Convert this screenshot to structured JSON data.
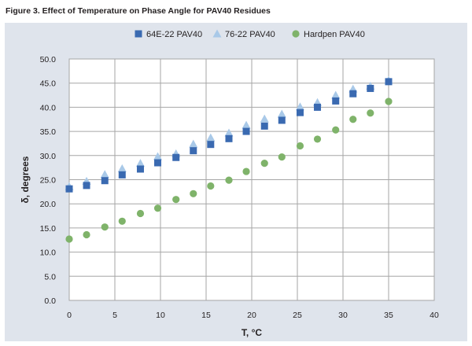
{
  "figure": {
    "title": "Figure 3.  Effect of Temperature on Phase Angle for PAV40 Residues"
  },
  "colors": {
    "panel_background": "#dfe4ec",
    "plot_background": "#ffffff",
    "grid": "#a6a6a6",
    "series_64E22": "#3a6ab1",
    "series_7622": "#a9c9e8",
    "series_hardpen": "#7fb36a"
  },
  "chart_data": {
    "type": "scatter",
    "title": "Effect of Temperature on Phase Angle for PAV40 Residues",
    "xlabel": "T, °C",
    "ylabel": "δ, degrees",
    "xlim": [
      0,
      40
    ],
    "ylim": [
      0,
      50
    ],
    "x_ticks": [
      "0",
      "5",
      "10",
      "15",
      "20",
      "25",
      "30",
      "35",
      "40"
    ],
    "y_ticks": [
      "0.0",
      "5.0",
      "10.0",
      "15.0",
      "20.0",
      "25.0",
      "30.0",
      "35.0",
      "40.0",
      "45.0",
      "50.0"
    ],
    "grid": true,
    "legend_position": "top",
    "series": [
      {
        "name": "64E-22 PAV40",
        "marker": "square",
        "color": "#3a6ab1",
        "x": [
          0,
          1.9,
          3.9,
          5.8,
          7.8,
          9.7,
          11.7,
          13.6,
          15.5,
          17.5,
          19.4,
          21.4,
          23.3,
          25.3,
          27.2,
          29.2,
          31.1,
          33.0,
          35.0
        ],
        "y": [
          23.1,
          23.8,
          24.8,
          26.0,
          27.2,
          28.5,
          29.6,
          31.0,
          32.3,
          33.5,
          35.0,
          36.1,
          37.3,
          38.9,
          40.0,
          41.3,
          42.8,
          43.9,
          45.3
        ]
      },
      {
        "name": "76-22 PAV40",
        "marker": "triangle",
        "color": "#a9c9e8",
        "x": [
          0,
          1.9,
          3.9,
          5.8,
          7.8,
          9.7,
          11.7,
          13.6,
          15.5,
          17.5,
          19.4,
          21.4,
          23.3,
          25.3,
          27.2,
          29.2,
          31.1,
          33.0,
          35.0
        ],
        "y": [
          23.6,
          24.7,
          26.1,
          27.3,
          28.4,
          29.8,
          30.4,
          32.4,
          33.7,
          34.7,
          36.3,
          37.6,
          38.6,
          40.1,
          41.0,
          42.5,
          43.8,
          44.4,
          45.6
        ]
      },
      {
        "name": "Hardpen PAV40",
        "marker": "circle",
        "color": "#7fb36a",
        "x": [
          0,
          1.9,
          3.9,
          5.8,
          7.8,
          9.7,
          11.7,
          13.6,
          15.5,
          17.5,
          19.4,
          21.4,
          23.3,
          25.3,
          27.2,
          29.2,
          31.1,
          33.0,
          35.0
        ],
        "y": [
          12.7,
          13.6,
          15.2,
          16.4,
          18.0,
          19.1,
          20.9,
          22.1,
          23.7,
          24.9,
          26.7,
          28.4,
          29.7,
          32.0,
          33.4,
          35.3,
          37.5,
          38.8,
          41.2
        ]
      }
    ]
  }
}
